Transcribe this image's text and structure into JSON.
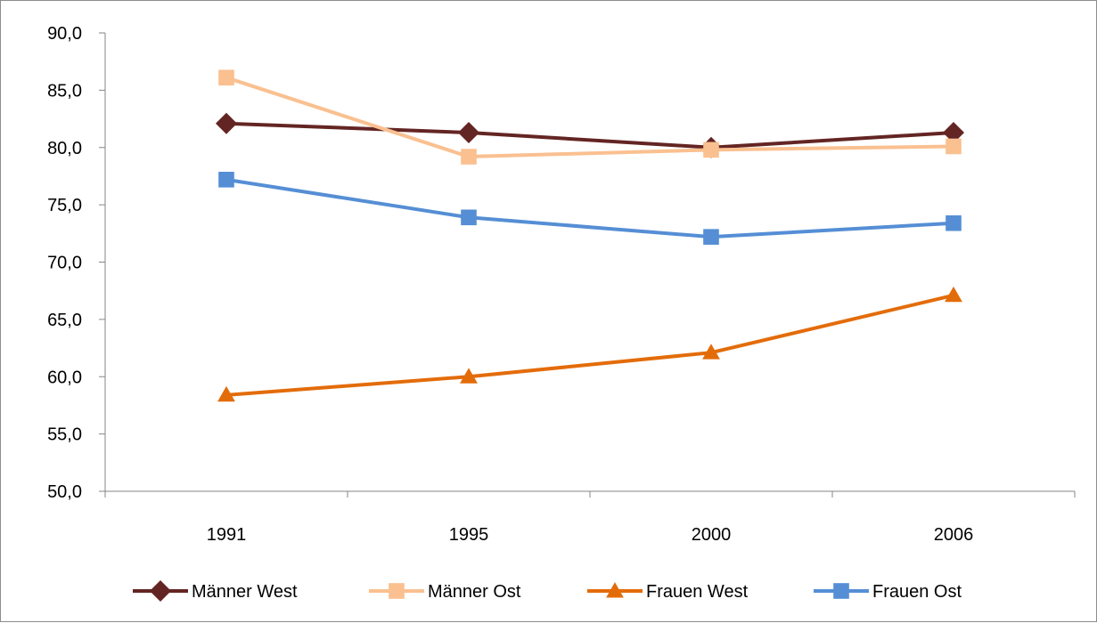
{
  "chart_data": {
    "type": "line",
    "categories": [
      "1991",
      "1995",
      "2000",
      "2006"
    ],
    "ylim": [
      50,
      90
    ],
    "yticks": [
      "50,0",
      "55,0",
      "60,0",
      "65,0",
      "70,0",
      "75,0",
      "80,0",
      "85,0",
      "90,0"
    ],
    "title": "",
    "xlabel": "",
    "ylabel": "",
    "grid": false,
    "legend_position": "bottom",
    "series": [
      {
        "name": "Männer West",
        "values": [
          82.1,
          81.3,
          80.0,
          81.3
        ],
        "color": "#632523",
        "marker": "diamond"
      },
      {
        "name": "Männer Ost",
        "values": [
          86.1,
          79.2,
          79.8,
          80.1
        ],
        "color": "#fac090",
        "marker": "square"
      },
      {
        "name": "Frauen West",
        "values": [
          58.4,
          60.0,
          62.1,
          67.1
        ],
        "color": "#e36c0a",
        "marker": "triangle"
      },
      {
        "name": "Frauen Ost",
        "values": [
          77.2,
          73.9,
          72.2,
          73.4
        ],
        "color": "#558ed5",
        "marker": "square"
      }
    ]
  }
}
